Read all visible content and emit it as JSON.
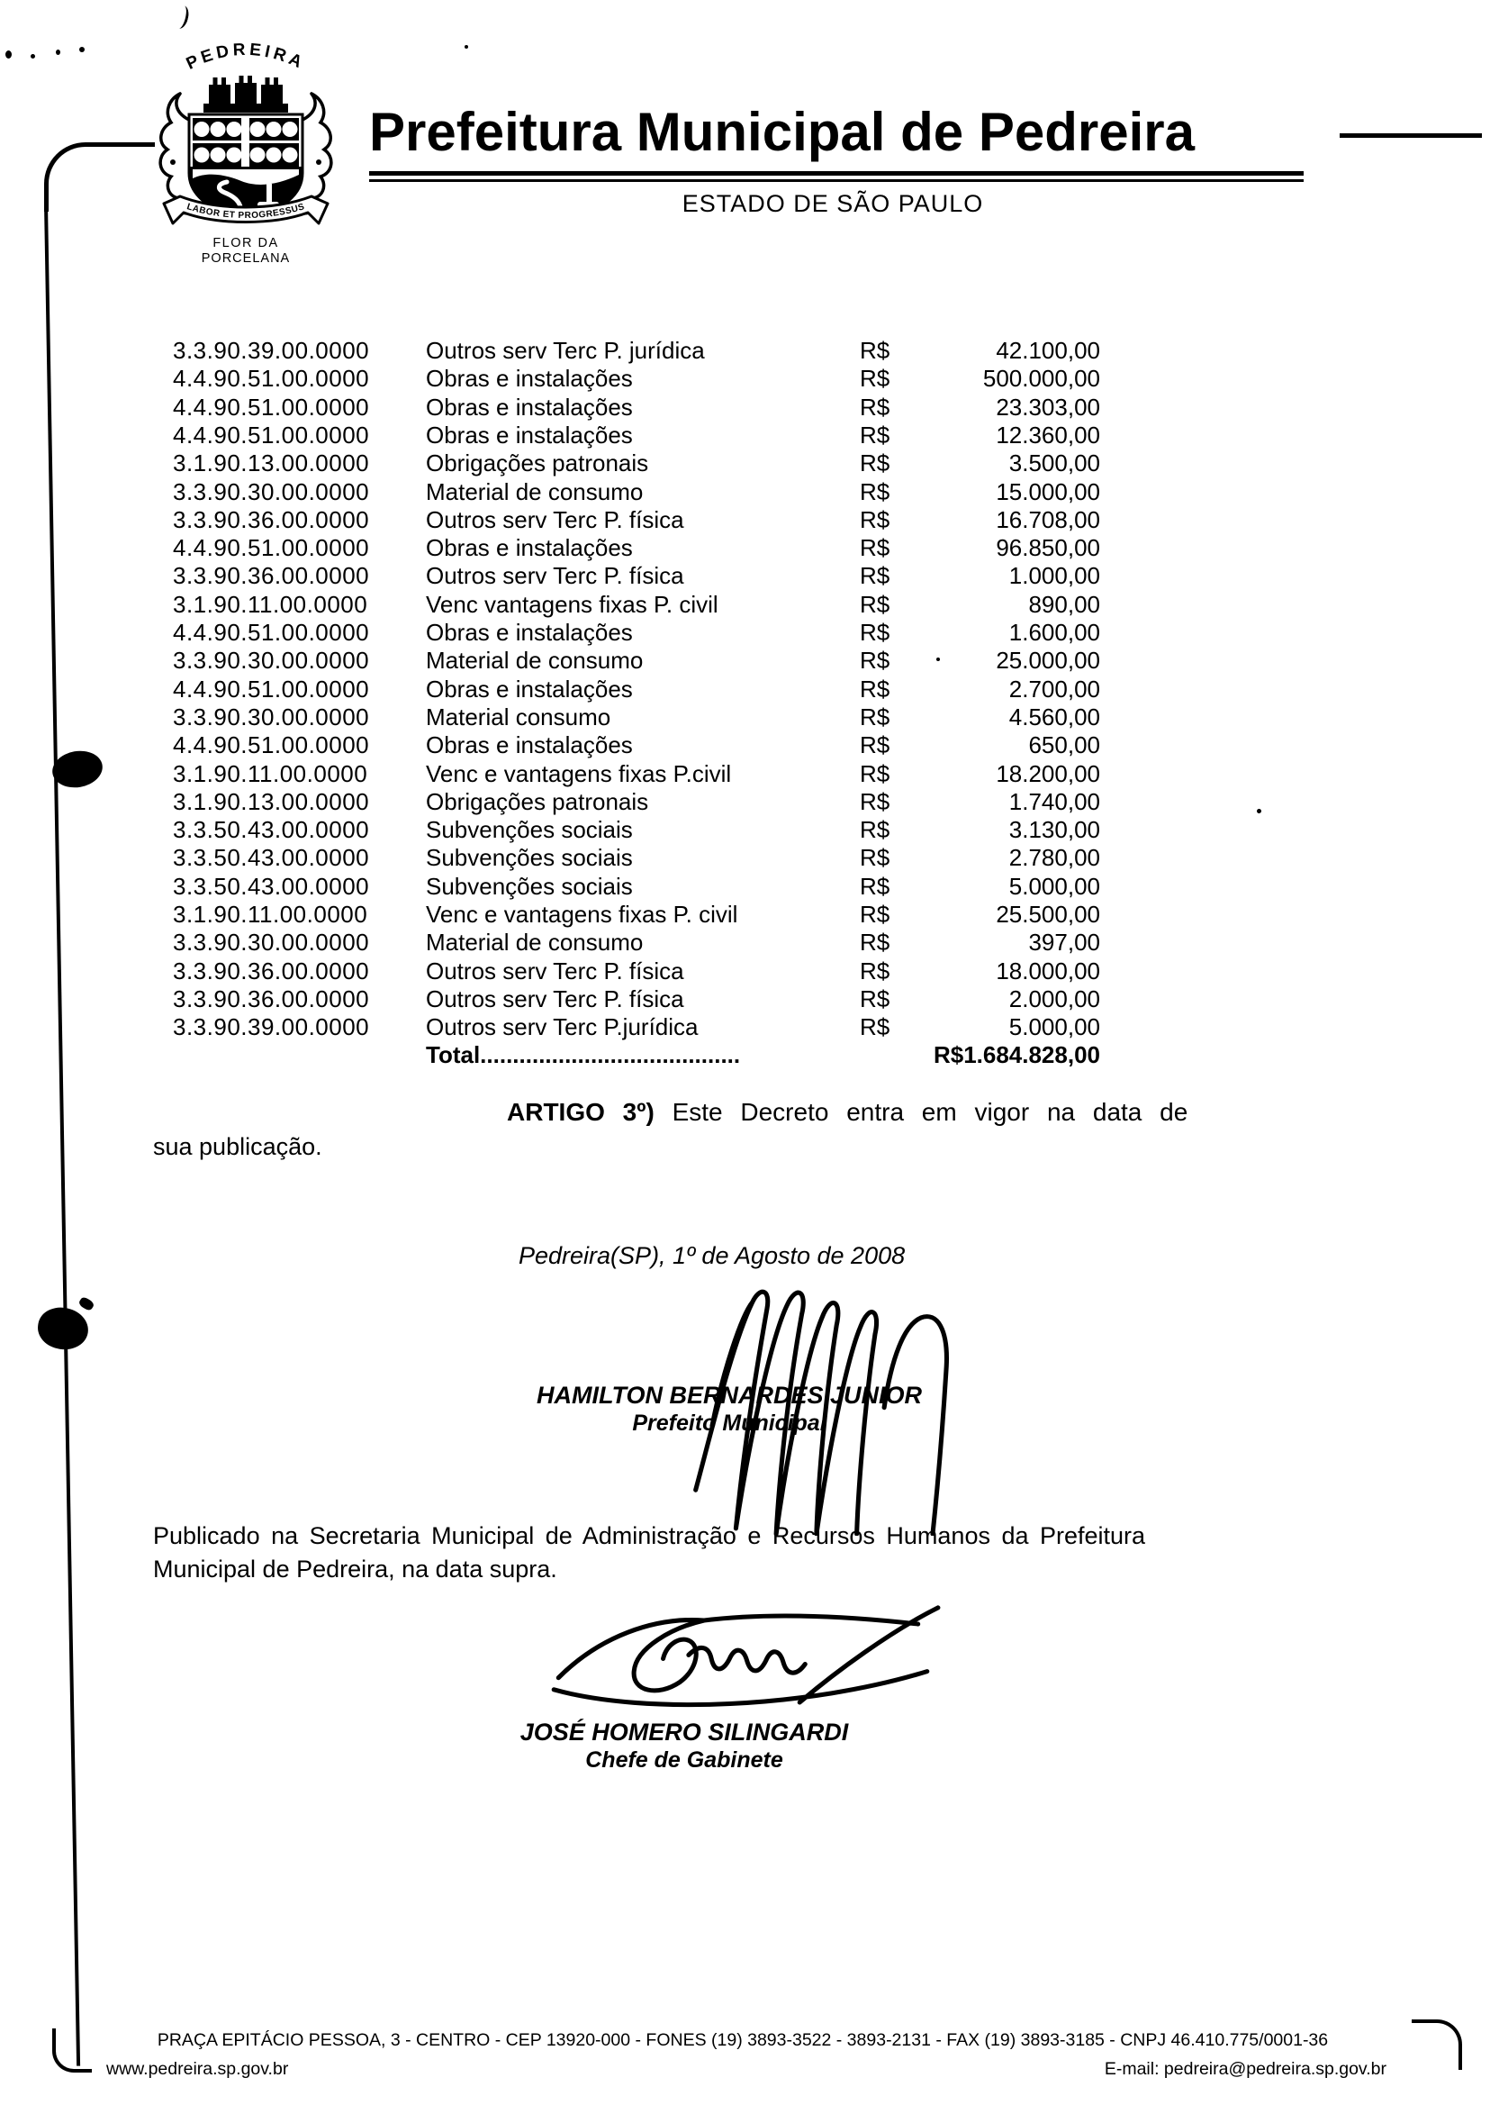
{
  "header": {
    "title": "Prefeitura Municipal de Pedreira",
    "subtitle": "ESTADO DE SÃO PAULO",
    "crest": {
      "arc_text": "PEDREIRA",
      "motto": "LABOR ET PROGRESSUS",
      "caption_line1": "FLOR DA",
      "caption_line2": "PORCELANA"
    }
  },
  "table": {
    "rows": [
      {
        "code": "3.3.90.39.00.0000",
        "description": "Outros serv Terc P. jurídica",
        "currency": "R$",
        "value": "42.100,00"
      },
      {
        "code": "4.4.90.51.00.0000",
        "description": "Obras e instalações",
        "currency": "R$",
        "value": "500.000,00"
      },
      {
        "code": "4.4.90.51.00.0000",
        "description": "Obras e instalações",
        "currency": "R$",
        "value": "23.303,00"
      },
      {
        "code": "4.4.90.51.00.0000",
        "description": "Obras e instalações",
        "currency": "R$",
        "value": "12.360,00"
      },
      {
        "code": "3.1.90.13.00.0000",
        "description": "Obrigações patronais",
        "currency": "R$",
        "value": "3.500,00"
      },
      {
        "code": "3.3.90.30.00.0000",
        "description": "Material de consumo",
        "currency": "R$",
        "value": "15.000,00"
      },
      {
        "code": "3.3.90.36.00.0000",
        "description": "Outros serv Terc P. física",
        "currency": "R$",
        "value": "16.708,00"
      },
      {
        "code": "4.4.90.51.00.0000",
        "description": "Obras e instalações",
        "currency": "R$",
        "value": "96.850,00"
      },
      {
        "code": "3.3.90.36.00.0000",
        "description": "Outros serv Terc P. física",
        "currency": "R$",
        "value": "1.000,00"
      },
      {
        "code": "3.1.90.11.00.0000",
        "description": "Venc vantagens fixas P. civil",
        "currency": "R$",
        "value": "890,00"
      },
      {
        "code": "4.4.90.51.00.0000",
        "description": "Obras e instalações",
        "currency": "R$",
        "value": "1.600,00"
      },
      {
        "code": "3.3.90.30.00.0000",
        "description": "Material de consumo",
        "currency": "R$",
        "value": "25.000,00"
      },
      {
        "code": "4.4.90.51.00.0000",
        "description": "Obras e instalações",
        "currency": "R$",
        "value": "2.700,00"
      },
      {
        "code": "3.3.90.30.00.0000",
        "description": "Material consumo",
        "currency": "R$",
        "value": "4.560,00"
      },
      {
        "code": "4.4.90.51.00.0000",
        "description": "Obras e instalações",
        "currency": "R$",
        "value": "650,00"
      },
      {
        "code": "3.1.90.11.00.0000",
        "description": "Venc e vantagens fixas P.civil",
        "currency": "R$",
        "value": "18.200,00"
      },
      {
        "code": "3.1.90.13.00.0000",
        "description": "Obrigações patronais",
        "currency": "R$",
        "value": "1.740,00"
      },
      {
        "code": "3.3.50.43.00.0000",
        "description": "Subvenções sociais",
        "currency": "R$",
        "value": "3.130,00"
      },
      {
        "code": "3.3.50.43.00.0000",
        "description": "Subvenções sociais",
        "currency": "R$",
        "value": "2.780,00"
      },
      {
        "code": "3.3.50.43.00.0000",
        "description": "Subvenções sociais",
        "currency": "R$",
        "value": "5.000,00"
      },
      {
        "code": "3.1.90.11.00.0000",
        "description": "Venc e vantagens fixas P. civil",
        "currency": "R$",
        "value": "25.500,00"
      },
      {
        "code": "3.3.90.30.00.0000",
        "description": "Material de consumo",
        "currency": "R$",
        "value": "397,00"
      },
      {
        "code": "3.3.90.36.00.0000",
        "description": "Outros serv Terc P. física",
        "currency": "R$",
        "value": "18.000,00"
      },
      {
        "code": "3.3.90.36.00.0000",
        "description": "Outros serv Terc P. física",
        "currency": "R$",
        "value": "2.000,00"
      },
      {
        "code": "3.3.90.39.00.0000",
        "description": "Outros serv Terc P.jurídica",
        "currency": "R$",
        "value": "5.000,00"
      }
    ],
    "total": {
      "label": "Total........................................",
      "value": "R$1.684.828,00"
    }
  },
  "body": {
    "article_label": "ARTIGO 3º)",
    "article_text": "Este Decreto entra em vigor na data de",
    "article_continuation": "sua publicação.",
    "dateline": "Pedreira(SP), 1º de Agosto de 2008",
    "signer1_name": "HAMILTON BERNARDES JUNIOR",
    "signer1_title": "Prefeito Municipal",
    "publication_line1": "Publicado na Secretaria Municipal de Administração e Recursos Humanos da Prefeitura",
    "publication_line2": "Municipal de Pedreira, na data supra.",
    "signer2_name": "JOSÉ HOMERO SILINGARDI",
    "signer2_title": "Chefe de Gabinete"
  },
  "footer": {
    "address_line": "PRAÇA EPITÁCIO PESSOA, 3 - CENTRO - CEP 13920-000 - FONES (19) 3893-3522 - 3893-2131 - FAX (19) 3893-3185 - CNPJ 46.410.775/0001-36",
    "website": "www.pedreira.sp.gov.br",
    "email": "E-mail: pedreira@pedreira.sp.gov.br"
  },
  "colors": {
    "ink": "#000000",
    "paper": "#ffffff"
  }
}
